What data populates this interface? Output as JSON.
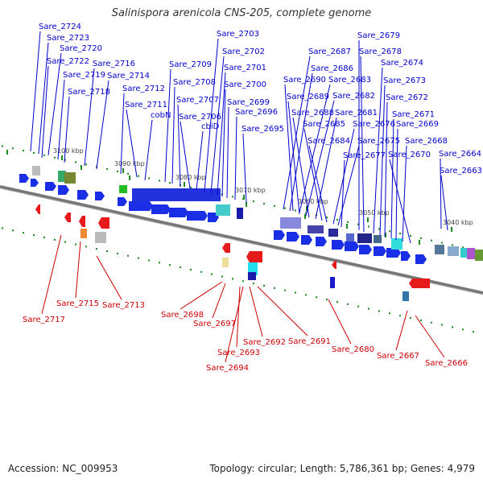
{
  "title": "Salinispora arenicola CNS-205, complete genome",
  "accession": "Accession: NC_009953",
  "stats": "Topology: circular; Length: 5,786,361 bp; Genes: 4,979",
  "colors": {
    "forward_label": "#0000cc",
    "reverse_label": "#cc0000",
    "forward_gene": "#1a2ee6",
    "reverse_gene": "#e61a1a",
    "backbone": "#888888",
    "tick": "#1a8a1a"
  },
  "ticks": [
    "3100 kbp",
    "3090 kbp",
    "3080 kbp",
    "3070 kbp",
    "3060 kbp",
    "3050 kbp",
    "3040 kbp"
  ],
  "forward_labels": [
    "Sare_2724",
    "Sare_2723",
    "Sare_2720",
    "Sare_2722",
    "Sare_2719",
    "Sare_2718",
    "Sare_2716",
    "Sare_2714",
    "Sare_2712",
    "Sare_2711",
    "cobN",
    "Sare_2709",
    "Sare_2708",
    "Sare_2707",
    "Sare_2706",
    "cbiD",
    "Sare_2703",
    "Sare_2702",
    "Sare_2701",
    "Sare_2700",
    "Sare_2699",
    "Sare_2696",
    "Sare_2695",
    "Sare_2687",
    "Sare_2686",
    "Sare_2690",
    "Sare_2683",
    "Sare_2689",
    "Sare_2682",
    "Sare_2688",
    "Sare_2681",
    "Sare_2685",
    "Sare_2684",
    "Sare_2676",
    "Sare_2675",
    "Sare_2677",
    "Sare_2679",
    "Sare_2678",
    "Sare_2674",
    "Sare_2673",
    "Sare_2672",
    "Sare_2671",
    "Sare_2669",
    "Sare_2668",
    "Sare_2670",
    "Sare_2664",
    "Sare_2663"
  ],
  "reverse_labels": [
    "Sare_2717",
    "Sare_2715",
    "Sare_2713",
    "Sare_2698",
    "Sare_2697",
    "Sare_2693",
    "Sare_2694",
    "Sare_2692",
    "Sare_2691",
    "Sare_2680",
    "Sare_2667",
    "Sare_2666"
  ]
}
